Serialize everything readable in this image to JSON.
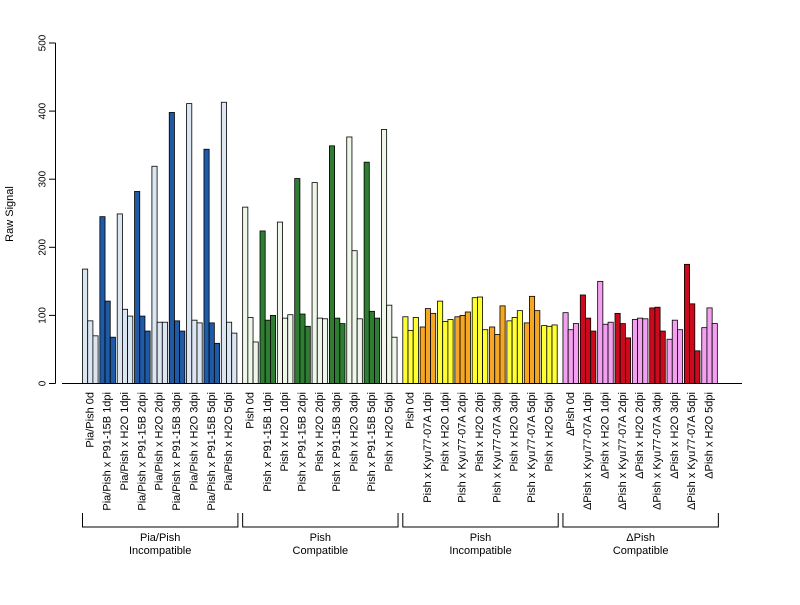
{
  "chart_data": {
    "type": "bar",
    "ylabel": "Raw Signal",
    "ylim": [
      0,
      500
    ],
    "yticks": [
      "0",
      "100",
      "200",
      "300",
      "400",
      "500"
    ],
    "grid": false,
    "groups": [
      {
        "label_line1": "Pia/Pish",
        "label_line2": "Incompatible",
        "conditions": [
          {
            "label": "Pia/Pish 0d",
            "values": [
              168,
              92,
              70
            ],
            "colors": [
              "#dce6f2",
              "#dce6f2",
              "#dce6f2"
            ]
          },
          {
            "label": "Pia/Pish x P91-15B 1dpi",
            "values": [
              245,
              121,
              68
            ],
            "colors": [
              "#1f5aa6",
              "#1f5aa6",
              "#1f5aa6"
            ]
          },
          {
            "label": "Pia/Pish x H2O 1dpi",
            "values": [
              249,
              109,
              99
            ],
            "colors": [
              "#dce6f2",
              "#dce6f2",
              "#dce6f2"
            ]
          },
          {
            "label": "Pia/Pish x P91-15B 2dpi",
            "values": [
              282,
              99,
              77
            ],
            "colors": [
              "#1f5aa6",
              "#1f5aa6",
              "#1f5aa6"
            ]
          },
          {
            "label": "Pia/Pish x H2O 2dpi",
            "values": [
              319,
              90,
              90
            ],
            "colors": [
              "#dce6f2",
              "#dce6f2",
              "#dce6f2"
            ]
          },
          {
            "label": "Pia/Pish x P91-15B 3dpi",
            "values": [
              398,
              92,
              77
            ],
            "colors": [
              "#1f5aa6",
              "#1f5aa6",
              "#1f5aa6"
            ]
          },
          {
            "label": "Pia/Pish x H2O 3dpi",
            "values": [
              411,
              93,
              89
            ],
            "colors": [
              "#dce6f2",
              "#dce6f2",
              "#dce6f2"
            ]
          },
          {
            "label": "Pia/Pish x P91-15B 5dpi",
            "values": [
              344,
              89,
              59
            ],
            "colors": [
              "#1f5aa6",
              "#1f5aa6",
              "#1f5aa6"
            ]
          },
          {
            "label": "Pia/Pish x H2O 5dpi",
            "values": [
              413,
              90,
              74
            ],
            "colors": [
              "#dce6f2",
              "#dce6f2",
              "#dce6f2"
            ]
          }
        ]
      },
      {
        "label_line1": "Pish",
        "label_line2": "Compatible",
        "conditions": [
          {
            "label": "Pish 0d",
            "values": [
              259,
              97,
              61
            ],
            "colors": [
              "#eef7e9",
              "#eef7e9",
              "#eef7e9"
            ]
          },
          {
            "label": "Pish x P91-15B 1dpi",
            "values": [
              224,
              93,
              100
            ],
            "colors": [
              "#2e7d32",
              "#2e7d32",
              "#2e7d32"
            ]
          },
          {
            "label": "Pish x H2O 1dpi",
            "values": [
              237,
              96,
              101
            ],
            "colors": [
              "#eef7e9",
              "#eef7e9",
              "#eef7e9"
            ]
          },
          {
            "label": "Pish x P91-15B 2dpi",
            "values": [
              301,
              102,
              84
            ],
            "colors": [
              "#2e7d32",
              "#2e7d32",
              "#2e7d32"
            ]
          },
          {
            "label": "Pish x H2O 2dpi",
            "values": [
              295,
              96,
              95
            ],
            "colors": [
              "#eef7e9",
              "#eef7e9",
              "#eef7e9"
            ]
          },
          {
            "label": "Pish x P91-15B 3dpi",
            "values": [
              349,
              96,
              88
            ],
            "colors": [
              "#2e7d32",
              "#2e7d32",
              "#2e7d32"
            ]
          },
          {
            "label": "Pish x H2O 3dpi",
            "values": [
              362,
              195,
              95
            ],
            "colors": [
              "#eef7e9",
              "#eef7e9",
              "#eef7e9"
            ]
          },
          {
            "label": "Pish x P91-15B 5dpi",
            "values": [
              325,
              106,
              96
            ],
            "colors": [
              "#2e7d32",
              "#2e7d32",
              "#2e7d32"
            ]
          },
          {
            "label": "Pish x H2O 5dpi",
            "values": [
              373,
              115,
              68
            ],
            "colors": [
              "#eef7e9",
              "#eef7e9",
              "#eef7e9"
            ]
          }
        ]
      },
      {
        "label_line1": "Pish",
        "label_line2": "Incompatible",
        "conditions": [
          {
            "label": "Pish 0d",
            "values": [
              98,
              78,
              97
            ],
            "colors": [
              "#ffff33",
              "#ffff33",
              "#ffff33"
            ]
          },
          {
            "label": "Pish x Kyu77-07A 1dpi",
            "values": [
              83,
              110,
              103
            ],
            "colors": [
              "#f5a623",
              "#f5a623",
              "#f5a623"
            ]
          },
          {
            "label": "Pish x H2O 1dpi",
            "values": [
              121,
              91,
              94
            ],
            "colors": [
              "#ffff33",
              "#ffff33",
              "#ffff33"
            ]
          },
          {
            "label": "Pish x Kyu77-07A 2dpi",
            "values": [
              98,
              100,
              105
            ],
            "colors": [
              "#f5a623",
              "#f5a623",
              "#f5a623"
            ]
          },
          {
            "label": "Pish x H2O 2dpi",
            "values": [
              126,
              127,
              79
            ],
            "colors": [
              "#ffff33",
              "#ffff33",
              "#ffff33"
            ]
          },
          {
            "label": "Pish x Kyu77-07A 3dpi",
            "values": [
              83,
              72,
              114
            ],
            "colors": [
              "#f5a623",
              "#f5a623",
              "#f5a623"
            ]
          },
          {
            "label": "Pish x H2O 3dpi",
            "values": [
              92,
              97,
              107
            ],
            "colors": [
              "#ffff33",
              "#ffff33",
              "#ffff33"
            ]
          },
          {
            "label": "Pish x Kyu77-07A 5dpi",
            "values": [
              89,
              128,
              107
            ],
            "colors": [
              "#f5a623",
              "#f5a623",
              "#f5a623"
            ]
          },
          {
            "label": "Pish x H2O 5dpi",
            "values": [
              85,
              84,
              86
            ],
            "colors": [
              "#ffff33",
              "#ffff33",
              "#ffff33"
            ]
          }
        ]
      },
      {
        "label_line1": "ΔPish",
        "label_line2": "Compatible",
        "conditions": [
          {
            "label": "ΔPish 0d",
            "values": [
              104,
              79,
              88
            ],
            "colors": [
              "#f4a0f0",
              "#f4a0f0",
              "#f4a0f0"
            ]
          },
          {
            "label": "ΔPish x Kyu77-07A 1dpi",
            "values": [
              130,
              96,
              77
            ],
            "colors": [
              "#cc0a1e",
              "#cc0a1e",
              "#cc0a1e"
            ]
          },
          {
            "label": "ΔPish x H2O 1dpi",
            "values": [
              150,
              87,
              90
            ],
            "colors": [
              "#f4a0f0",
              "#f4a0f0",
              "#f4a0f0"
            ]
          },
          {
            "label": "ΔPish x Kyu77-07A 2dpi",
            "values": [
              103,
              88,
              67
            ],
            "colors": [
              "#cc0a1e",
              "#cc0a1e",
              "#cc0a1e"
            ]
          },
          {
            "label": "ΔPish x H2O 2dpi",
            "values": [
              94,
              96,
              95
            ],
            "colors": [
              "#f4a0f0",
              "#f4a0f0",
              "#f4a0f0"
            ]
          },
          {
            "label": "ΔPish x Kyu77-07A 3dpi",
            "values": [
              111,
              112,
              77
            ],
            "colors": [
              "#cc0a1e",
              "#cc0a1e",
              "#cc0a1e"
            ]
          },
          {
            "label": "ΔPish x H2O 3dpi",
            "values": [
              65,
              93,
              79
            ],
            "colors": [
              "#f4a0f0",
              "#f4a0f0",
              "#f4a0f0"
            ]
          },
          {
            "label": "ΔPish x Kyu77-07A 5dpi",
            "values": [
              175,
              117,
              48
            ],
            "colors": [
              "#cc0a1e",
              "#cc0a1e",
              "#cc0a1e"
            ]
          },
          {
            "label": "ΔPish x H2O 5dpi",
            "values": [
              82,
              111,
              88
            ],
            "colors": [
              "#f4a0f0",
              "#f4a0f0",
              "#f4a0f0"
            ]
          }
        ]
      }
    ]
  }
}
